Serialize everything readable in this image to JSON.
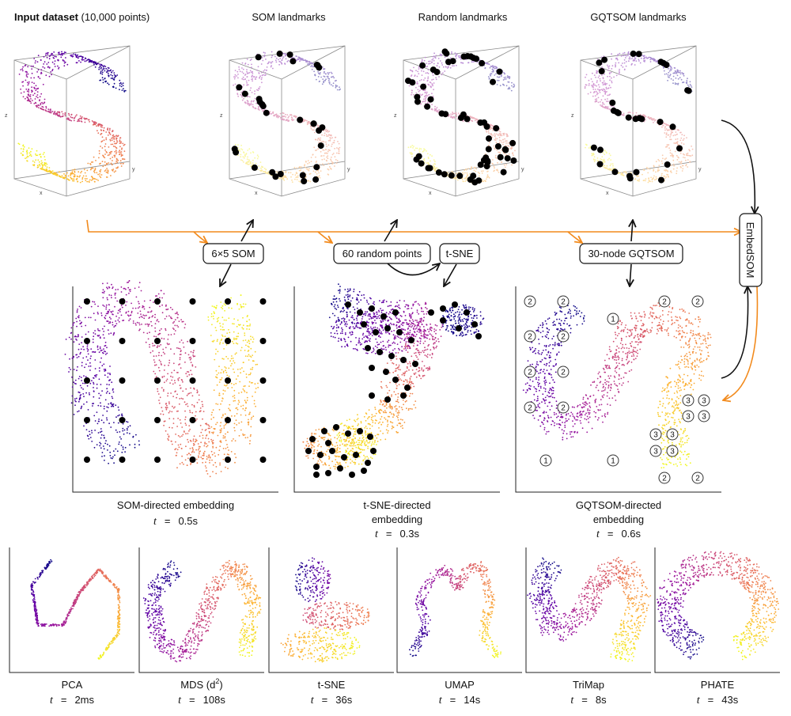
{
  "top_row": {
    "input_title_bold": "Input dataset",
    "input_title_rest": " (10,000 points)",
    "som_title": "SOM landmarks",
    "random_title": "Random landmarks",
    "gqtsom_title": "GQTSOM landmarks",
    "axis_x": "x",
    "axis_y": "y",
    "axis_z": "z"
  },
  "flow": {
    "som_box": "6×5 SOM",
    "random_box": "60 random points",
    "tsne_box": "t-SNE",
    "gqtsom_box": "30-node GQTSOM",
    "embedsom_box": "EmbedSOM"
  },
  "middle_row": [
    {
      "line1": "SOM-directed embedding",
      "line2": "",
      "t_label": "t",
      "eq": "=",
      "time": "0.5s"
    },
    {
      "line1": "t-SNE-directed",
      "line2": "embedding",
      "t_label": "t",
      "eq": "=",
      "time": "0.3s"
    },
    {
      "line1": "GQTSOM-directed",
      "line2": "embedding",
      "t_label": "t",
      "eq": "=",
      "time": "0.6s"
    }
  ],
  "gqtsom_node_labels": [
    "1",
    "2",
    "3"
  ],
  "bottom_row": [
    {
      "name": "PCA",
      "t_label": "t",
      "eq": "=",
      "time": "2ms"
    },
    {
      "name": "MDS (d",
      "sup": "2",
      "name_end": ")",
      "t_label": "t",
      "eq": "=",
      "time": "108s"
    },
    {
      "name": "t-SNE",
      "t_label": "t",
      "eq": "=",
      "time": "36s"
    },
    {
      "name": "UMAP",
      "t_label": "t",
      "eq": "=",
      "time": "14s"
    },
    {
      "name": "TriMap",
      "t_label": "t",
      "eq": "=",
      "time": "8s"
    },
    {
      "name": "PHATE",
      "t_label": "t",
      "eq": "=",
      "time": "43s"
    }
  ],
  "colors": {
    "palette": [
      "#0d0887",
      "#5c01a6",
      "#9c179e",
      "#cc4778",
      "#ed7953",
      "#fdb42f",
      "#f0f921"
    ],
    "flow_orange": "#f28a1c",
    "flow_black": "#111111",
    "landmark": "#000000"
  }
}
